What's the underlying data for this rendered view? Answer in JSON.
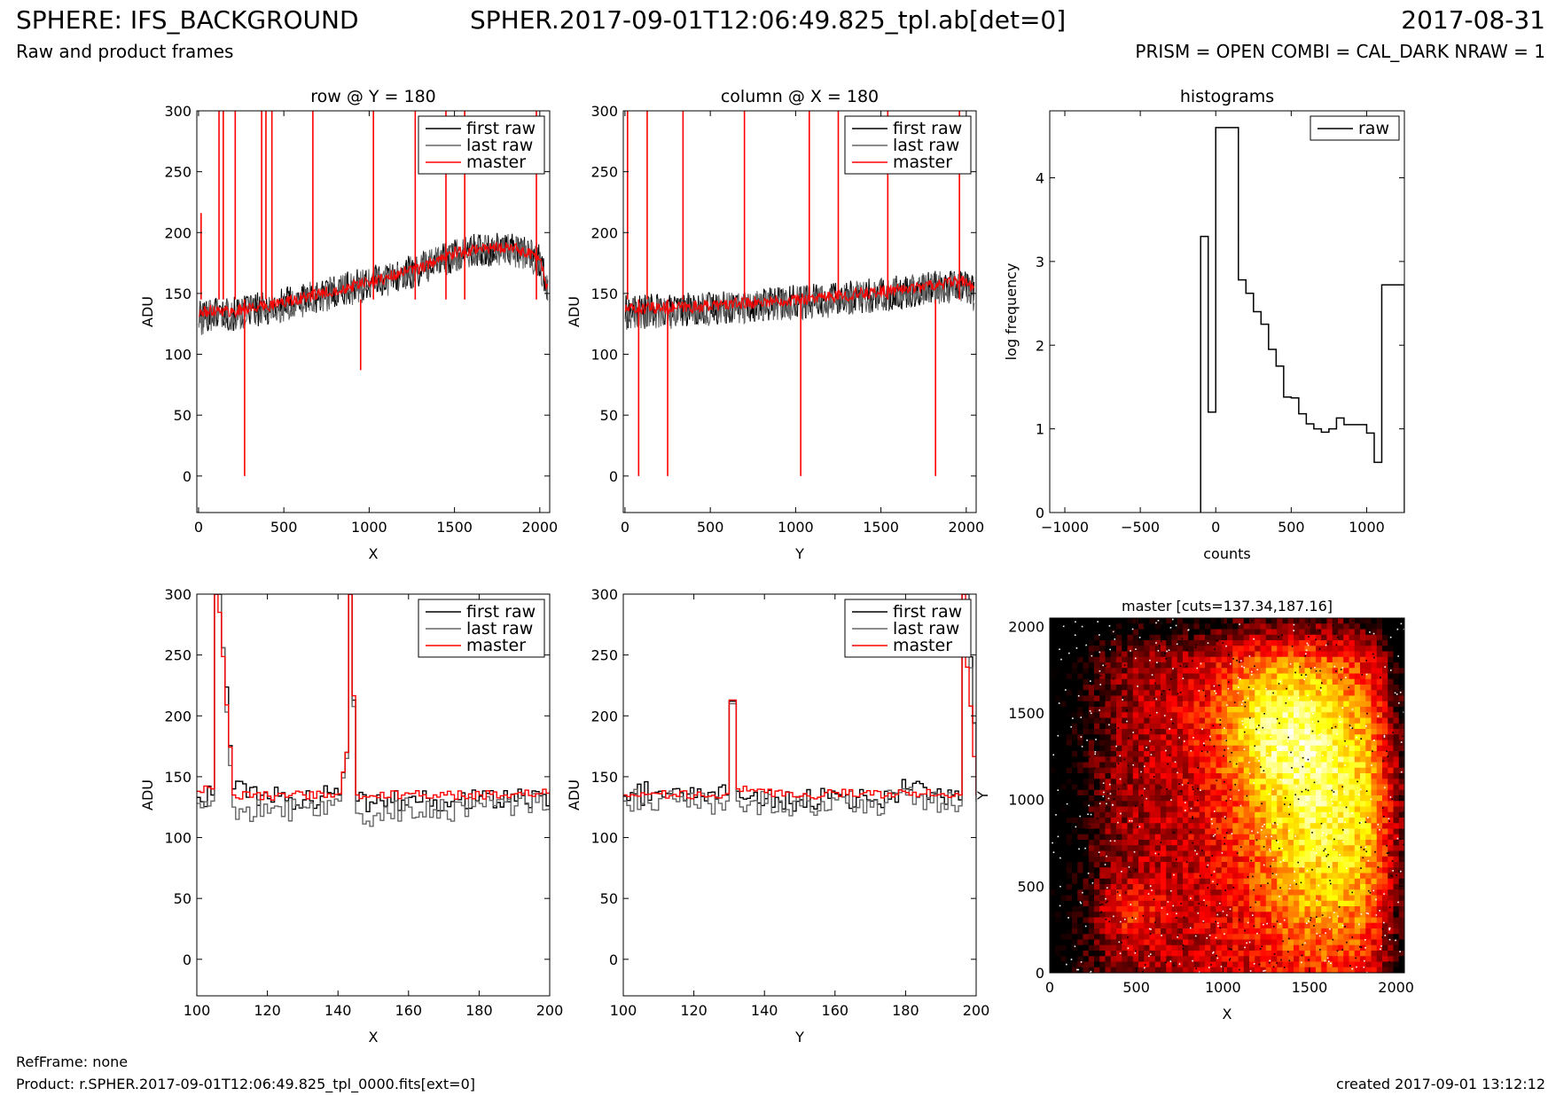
{
  "header": {
    "title": "SPHERE: IFS_BACKGROUND",
    "file": "SPHER.2017-09-01T12:06:49.825_tpl.ab[det=0]",
    "date": "2017-08-31",
    "subtitle": "Raw and product frames",
    "params": "PRISM = OPEN COMBI = CAL_DARK NRAW = 1"
  },
  "footer": {
    "refframe": "RefFrame: none",
    "product": "Product: r.SPHER.2017-09-01T12:06:49.825_tpl_0000.fits[ext=0]",
    "created": "created 2017-09-01 13:12:12"
  },
  "colors": {
    "first_raw": "#000000",
    "last_raw": "#666666",
    "master": "#ff0000"
  },
  "chart_data": [
    {
      "id": "row",
      "type": "line",
      "title": "row @ Y = 180",
      "xlabel": "X",
      "ylabel": "ADU",
      "xlim": [
        -10,
        2058
      ],
      "ylim": [
        -30,
        300
      ],
      "xticks": [
        0,
        500,
        1000,
        1500,
        2000
      ],
      "yticks": [
        0,
        50,
        100,
        150,
        200,
        250,
        300
      ],
      "legend": "top-right",
      "series": [
        {
          "name": "first raw",
          "x": [
            0,
            100,
            200,
            300,
            400,
            500,
            600,
            700,
            800,
            900,
            1000,
            1100,
            1200,
            1300,
            1400,
            1500,
            1600,
            1700,
            1800,
            1900,
            2000,
            2048
          ],
          "y": [
            130,
            135,
            133,
            136,
            138,
            142,
            145,
            148,
            152,
            155,
            158,
            162,
            166,
            170,
            176,
            182,
            185,
            186,
            187,
            184,
            178,
            150
          ]
        },
        {
          "name": "last raw",
          "x": [
            0,
            100,
            200,
            300,
            400,
            500,
            600,
            700,
            800,
            900,
            1000,
            1100,
            1200,
            1300,
            1400,
            1500,
            1600,
            1700,
            1800,
            1900,
            2000,
            2048
          ],
          "y": [
            128,
            134,
            132,
            135,
            137,
            141,
            144,
            147,
            151,
            154,
            157,
            161,
            165,
            169,
            175,
            181,
            184,
            185,
            186,
            183,
            177,
            148
          ]
        },
        {
          "name": "master",
          "x": [
            0,
            100,
            200,
            300,
            400,
            500,
            600,
            700,
            800,
            900,
            1000,
            1100,
            1200,
            1300,
            1400,
            1500,
            1600,
            1700,
            1800,
            1900,
            2000,
            2048
          ],
          "y": [
            133,
            137,
            135,
            138,
            140,
            143,
            146,
            149,
            153,
            156,
            159,
            163,
            167,
            171,
            177,
            183,
            186,
            187,
            188,
            185,
            179,
            152
          ]
        }
      ],
      "spikes": [
        {
          "x": 15,
          "y": 216
        },
        {
          "x": 120,
          "y": 300
        },
        {
          "x": 145,
          "y": 300
        },
        {
          "x": 215,
          "y": 300
        },
        {
          "x": 270,
          "y": 0
        },
        {
          "x": 370,
          "y": 300
        },
        {
          "x": 395,
          "y": 300
        },
        {
          "x": 430,
          "y": 300
        },
        {
          "x": 670,
          "y": 300
        },
        {
          "x": 950,
          "y": 87
        },
        {
          "x": 1025,
          "y": 300
        },
        {
          "x": 1270,
          "y": 300
        },
        {
          "x": 1450,
          "y": 300
        },
        {
          "x": 1560,
          "y": 300
        },
        {
          "x": 1980,
          "y": 300
        }
      ]
    },
    {
      "id": "column",
      "type": "line",
      "title": "column @ X = 180",
      "xlabel": "Y",
      "ylabel": "ADU",
      "xlim": [
        -10,
        2058
      ],
      "ylim": [
        -30,
        300
      ],
      "xticks": [
        0,
        500,
        1000,
        1500,
        2000
      ],
      "yticks": [
        0,
        50,
        100,
        150,
        200,
        250,
        300
      ],
      "legend": "top-right",
      "series": [
        {
          "name": "first raw",
          "x": [
            0,
            200,
            400,
            600,
            800,
            1000,
            1200,
            1400,
            1600,
            1800,
            2000,
            2048
          ],
          "y": [
            135,
            136,
            137,
            139,
            141,
            143,
            145,
            148,
            151,
            155,
            158,
            150
          ]
        },
        {
          "name": "last raw",
          "x": [
            0,
            200,
            400,
            600,
            800,
            1000,
            1200,
            1400,
            1600,
            1800,
            2000,
            2048
          ],
          "y": [
            133,
            134,
            136,
            138,
            140,
            142,
            144,
            147,
            150,
            154,
            157,
            148
          ]
        },
        {
          "name": "master",
          "x": [
            0,
            200,
            400,
            600,
            800,
            1000,
            1200,
            1400,
            1600,
            1800,
            2000,
            2048
          ],
          "y": [
            137,
            138,
            139,
            141,
            143,
            145,
            147,
            150,
            153,
            157,
            160,
            152
          ]
        }
      ],
      "spikes": [
        {
          "x": 15,
          "y": 300
        },
        {
          "x": 80,
          "y": 0
        },
        {
          "x": 130,
          "y": 300
        },
        {
          "x": 250,
          "y": 0
        },
        {
          "x": 340,
          "y": 300
        },
        {
          "x": 700,
          "y": 300
        },
        {
          "x": 1030,
          "y": 0
        },
        {
          "x": 1080,
          "y": 300
        },
        {
          "x": 1250,
          "y": 300
        },
        {
          "x": 1540,
          "y": 300
        },
        {
          "x": 1820,
          "y": 0
        },
        {
          "x": 1960,
          "y": 300
        }
      ]
    },
    {
      "id": "histograms",
      "type": "histogram",
      "title": "histograms",
      "xlabel": "counts",
      "ylabel": "log frequency",
      "xlim": [
        -1100,
        1250
      ],
      "ylim": [
        0,
        4.8
      ],
      "xticks": [
        -1000,
        -500,
        0,
        500,
        1000
      ],
      "xtick_labels": [
        "−1000",
        "−500",
        "0",
        "500",
        "1000"
      ],
      "yticks": [
        0,
        1,
        2,
        3,
        4
      ],
      "legend": "top-right",
      "series": [
        {
          "name": "raw",
          "bin_edges": [
            -100,
            -50,
            0,
            50,
            100,
            150,
            200,
            250,
            300,
            350,
            400,
            450,
            500,
            550,
            600,
            650,
            700,
            750,
            800,
            850,
            900,
            950,
            1000,
            1050,
            1100,
            1150,
            1200,
            1250
          ],
          "values": [
            3.3,
            1.2,
            4.6,
            4.6,
            4.6,
            2.78,
            2.62,
            2.4,
            2.25,
            1.95,
            1.75,
            1.38,
            1.37,
            1.18,
            1.06,
            1.0,
            0.96,
            1.0,
            1.13,
            1.05,
            1.05,
            1.05,
            0.95,
            0.6,
            2.72,
            2.72,
            2.72
          ]
        }
      ]
    },
    {
      "id": "row-zoom",
      "type": "line",
      "title": "",
      "xlabel": "X",
      "ylabel": "ADU",
      "xlim": [
        100,
        200
      ],
      "ylim": [
        -30,
        300
      ],
      "xticks": [
        100,
        120,
        140,
        160,
        180,
        200
      ],
      "yticks": [
        0,
        50,
        100,
        150,
        200,
        250,
        300
      ],
      "legend": "top-right",
      "series": [
        {
          "name": "first raw",
          "x": [
            100,
            104,
            105,
            106,
            110,
            120,
            130,
            140,
            142,
            143,
            145,
            150,
            160,
            170,
            180,
            190,
            200
          ],
          "y": [
            133,
            135,
            300,
            300,
            140,
            132,
            131,
            135,
            170,
            300,
            130,
            128,
            133,
            129,
            134,
            130,
            136
          ]
        },
        {
          "name": "last raw",
          "x": [
            100,
            104,
            105,
            106,
            110,
            120,
            130,
            140,
            142,
            143,
            145,
            150,
            160,
            170,
            180,
            190,
            200
          ],
          "y": [
            128,
            130,
            300,
            300,
            125,
            120,
            125,
            130,
            165,
            300,
            120,
            118,
            125,
            122,
            128,
            126,
            130
          ]
        },
        {
          "name": "master",
          "x": [
            100,
            104,
            105,
            106,
            110,
            120,
            130,
            140,
            142,
            143,
            145,
            150,
            160,
            170,
            180,
            190,
            200
          ],
          "y": [
            138,
            140,
            300,
            285,
            135,
            134,
            135,
            136,
            170,
            300,
            135,
            134,
            136,
            135,
            135,
            136,
            138
          ]
        }
      ]
    },
    {
      "id": "column-zoom",
      "type": "line",
      "title": "",
      "xlabel": "Y",
      "ylabel": "ADU",
      "xlim": [
        100,
        200
      ],
      "ylim": [
        -30,
        300
      ],
      "xticks": [
        100,
        120,
        140,
        160,
        180,
        200
      ],
      "yticks": [
        0,
        50,
        100,
        150,
        200,
        250,
        300
      ],
      "legend": "top-right",
      "series": [
        {
          "name": "first raw",
          "x": [
            100,
            110,
            120,
            129,
            130,
            131,
            132,
            140,
            150,
            160,
            170,
            180,
            190,
            195,
            196,
            197,
            200
          ],
          "y": [
            134,
            138,
            133,
            135,
            212,
            212,
            138,
            132,
            131,
            136,
            130,
            140,
            133,
            131,
            300,
            300,
            135
          ]
        },
        {
          "name": "last raw",
          "x": [
            100,
            110,
            120,
            129,
            130,
            131,
            132,
            140,
            150,
            160,
            170,
            180,
            190,
            195,
            196,
            197,
            200
          ],
          "y": [
            130,
            132,
            127,
            130,
            210,
            210,
            130,
            128,
            126,
            131,
            125,
            135,
            128,
            126,
            300,
            300,
            130
          ]
        },
        {
          "name": "master",
          "x": [
            100,
            110,
            120,
            129,
            130,
            131,
            132,
            140,
            150,
            160,
            170,
            180,
            190,
            195,
            196,
            197,
            200
          ],
          "y": [
            135,
            136,
            135,
            136,
            213,
            213,
            140,
            137,
            134,
            137,
            135,
            137,
            136,
            135,
            300,
            240,
            135
          ]
        }
      ]
    },
    {
      "id": "master-image",
      "type": "heatmap",
      "title": "master [cuts=137.34,187.16]",
      "xlabel": "X",
      "ylabel": "Y",
      "xlim": [
        0,
        2048
      ],
      "ylim": [
        0,
        2048
      ],
      "xticks": [
        0,
        500,
        1000,
        1500,
        2000
      ],
      "yticks": [
        0,
        500,
        1000,
        1500,
        2000
      ],
      "colormap": "hot",
      "cuts": [
        137.34,
        187.16
      ]
    }
  ]
}
